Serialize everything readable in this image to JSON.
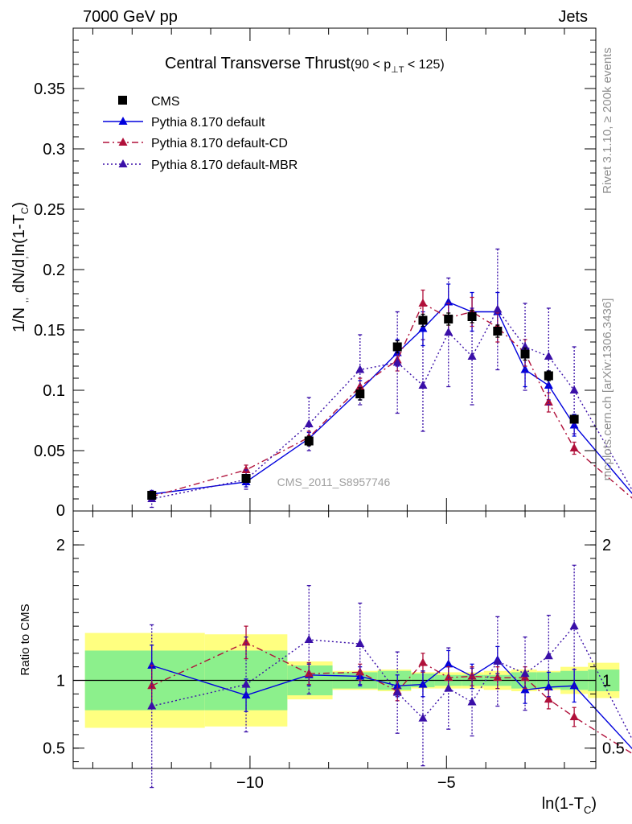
{
  "header": {
    "left_label": "7000 GeV pp",
    "right_label": "Jets"
  },
  "side_labels": {
    "rivet": "Rivet 3.1.10, ≥ 200k events",
    "mcplots": "mcplots.cern.ch [arXiv:1306.3436]"
  },
  "chart_data": [
    {
      "type": "line",
      "title": "Central Transverse Thrust",
      "title_suffix": "(90 < p",
      "title_sub": "⊥T",
      "title_end": " < 125)",
      "ylabel": "1/N dN/dln(1-T_C)",
      "xlabel": "ln(1-T_C)",
      "watermark": "CMS_2011_S8957746",
      "xlim": [
        -14.5,
        -1.2
      ],
      "ylim": [
        0,
        0.4
      ],
      "yticks": [
        0.05,
        0.1,
        0.15,
        0.2,
        0.25,
        0.3,
        0.35
      ],
      "ytick_labels": [
        "0.05",
        "0.1",
        "0.15",
        "0.2",
        "0.25",
        "0.3",
        "0.35"
      ],
      "xticks": [
        -10,
        -5
      ],
      "xtick_labels": [
        "−10",
        "−5"
      ],
      "legend_position": "top-left",
      "series": [
        {
          "name": "CMS",
          "style": "markers",
          "color": "#000000",
          "x": [
            -12.5,
            -10.1,
            -8.5,
            -7.2,
            -6.25,
            -5.6,
            -4.95,
            -4.35,
            -3.7,
            -3.0,
            -2.4,
            -1.75,
            -0.0
          ],
          "y": [
            0.013,
            0.027,
            0.058,
            0.097,
            0.136,
            0.158,
            0.159,
            0.161,
            0.149,
            0.13,
            0.112,
            0.076,
            0.01
          ],
          "err": [
            0.002,
            0.003,
            0.004,
            0.005,
            0.005,
            0.005,
            0.005,
            0.005,
            0.005,
            0.005,
            0.004,
            0.003,
            0.001
          ]
        },
        {
          "name": "Pythia 8.170 default",
          "style": "solid",
          "color": "#0000dd",
          "x": [
            -12.5,
            -10.1,
            -8.5,
            -7.2,
            -6.25,
            -5.6,
            -4.95,
            -4.35,
            -3.7,
            -3.0,
            -2.4,
            -1.75,
            -0.0
          ],
          "y": [
            0.014,
            0.024,
            0.06,
            0.1,
            0.131,
            0.151,
            0.173,
            0.165,
            0.165,
            0.117,
            0.104,
            0.071,
            0.004
          ],
          "err": [
            0.002,
            0.004,
            0.005,
            0.008,
            0.011,
            0.014,
            0.015,
            0.016,
            0.016,
            0.014,
            0.012,
            0.009,
            0.002
          ]
        },
        {
          "name": "Pythia 8.170 default-CD",
          "style": "dashdot",
          "color": "#b0103a",
          "x": [
            -12.5,
            -10.1,
            -8.5,
            -7.2,
            -6.25,
            -5.6,
            -4.95,
            -4.35,
            -3.7,
            -3.0,
            -2.4,
            -1.75,
            -0.0
          ],
          "y": [
            0.012,
            0.034,
            0.061,
            0.103,
            0.125,
            0.172,
            0.16,
            0.165,
            0.152,
            0.131,
            0.09,
            0.052,
            0.003
          ],
          "err": [
            0.002,
            0.004,
            0.005,
            0.007,
            0.009,
            0.011,
            0.012,
            0.012,
            0.012,
            0.011,
            0.008,
            0.005,
            0.001
          ]
        },
        {
          "name": "Pythia 8.170 default-MBR",
          "style": "dotted",
          "color": "#3a0fa8",
          "x": [
            -12.5,
            -10.1,
            -8.5,
            -7.2,
            -6.25,
            -5.6,
            -4.95,
            -4.35,
            -3.7,
            -3.0,
            -2.4,
            -1.75,
            -0.0
          ],
          "y": [
            0.01,
            0.026,
            0.072,
            0.117,
            0.123,
            0.104,
            0.148,
            0.128,
            0.167,
            0.136,
            0.128,
            0.1,
            0.002
          ],
          "err": [
            0.007,
            0.008,
            0.022,
            0.029,
            0.042,
            0.038,
            0.045,
            0.04,
            0.05,
            0.036,
            0.04,
            0.036,
            0.002
          ]
        }
      ]
    },
    {
      "type": "line",
      "ylabel": "Ratio to CMS",
      "xlabel": "ln(1-T_C)",
      "xlim": [
        -14.5,
        -1.2
      ],
      "ylim": [
        0.35,
        2.25
      ],
      "yticks": [
        0.5,
        1,
        2
      ],
      "ytick_labels": [
        "0.5",
        "1",
        "2"
      ],
      "xticks": [
        -10,
        -5
      ],
      "xtick_labels": [
        "−10",
        "−5"
      ],
      "bands": {
        "bins": [
          [
            -14.2,
            -11.15
          ],
          [
            -11.15,
            -9.05
          ],
          [
            -9.05,
            -7.9
          ],
          [
            -7.9,
            -6.75
          ],
          [
            -6.75,
            -5.9
          ],
          [
            -5.9,
            -5.3
          ],
          [
            -5.3,
            -4.6
          ],
          [
            -4.6,
            -4.05
          ],
          [
            -4.05,
            -3.35
          ],
          [
            -3.35,
            -2.7
          ],
          [
            -2.7,
            -2.1
          ],
          [
            -2.1,
            -1.4
          ],
          [
            -1.4,
            -0.6
          ]
        ],
        "green_half": [
          0.22,
          0.22,
          0.11,
          0.06,
          0.07,
          0.05,
          0.04,
          0.04,
          0.04,
          0.06,
          0.06,
          0.07,
          0.08
        ],
        "yellow_half": [
          0.35,
          0.34,
          0.14,
          0.07,
          0.08,
          0.06,
          0.06,
          0.06,
          0.07,
          0.08,
          0.07,
          0.1,
          0.13
        ],
        "green_color": "#8cf08c",
        "yellow_color": "#ffff80"
      },
      "series": [
        {
          "name": "Pythia 8.170 default",
          "color": "#0000dd",
          "style": "solid",
          "x": [
            -12.5,
            -10.1,
            -8.5,
            -7.2,
            -6.25,
            -5.6,
            -4.95,
            -4.35,
            -3.7,
            -3.0,
            -2.4,
            -1.75,
            -0.0
          ],
          "y": [
            1.11,
            0.89,
            1.04,
            1.03,
            0.96,
            0.97,
            1.12,
            1.03,
            1.15,
            0.93,
            0.95,
            0.96,
            0.41
          ],
          "err": [
            0.15,
            0.12,
            0.08,
            0.07,
            0.08,
            0.09,
            0.1,
            0.09,
            0.1,
            0.1,
            0.11,
            0.12,
            0.25
          ]
        },
        {
          "name": "Pythia 8.170 default-CD",
          "color": "#b0103a",
          "style": "dashdot",
          "x": [
            -12.5,
            -10.1,
            -8.5,
            -7.2,
            -6.25,
            -5.6,
            -4.95,
            -4.35,
            -3.7,
            -3.0,
            -2.4,
            -1.75,
            -0.0
          ],
          "y": [
            0.96,
            1.28,
            1.05,
            1.06,
            0.92,
            1.13,
            1.02,
            1.03,
            1.02,
            1.02,
            0.86,
            0.73,
            0.41
          ],
          "err": [
            0.15,
            0.12,
            0.08,
            0.06,
            0.07,
            0.07,
            0.08,
            0.07,
            0.08,
            0.08,
            0.07,
            0.07,
            0.1
          ]
        },
        {
          "name": "Pythia 8.170 default-MBR",
          "color": "#3a0fa8",
          "style": "dotted",
          "x": [
            -12.5,
            -10.1,
            -8.5,
            -7.2,
            -6.25,
            -5.6,
            -4.95,
            -4.35,
            -3.7,
            -3.0,
            -2.4,
            -1.75,
            -0.0
          ],
          "y": [
            0.81,
            0.97,
            1.3,
            1.27,
            0.91,
            0.72,
            0.94,
            0.84,
            1.14,
            1.05,
            1.18,
            1.4,
            0.41
          ],
          "err": [
            0.6,
            0.35,
            0.4,
            0.3,
            0.3,
            0.35,
            0.3,
            0.25,
            0.33,
            0.27,
            0.3,
            0.45,
            0.25
          ]
        }
      ]
    }
  ]
}
